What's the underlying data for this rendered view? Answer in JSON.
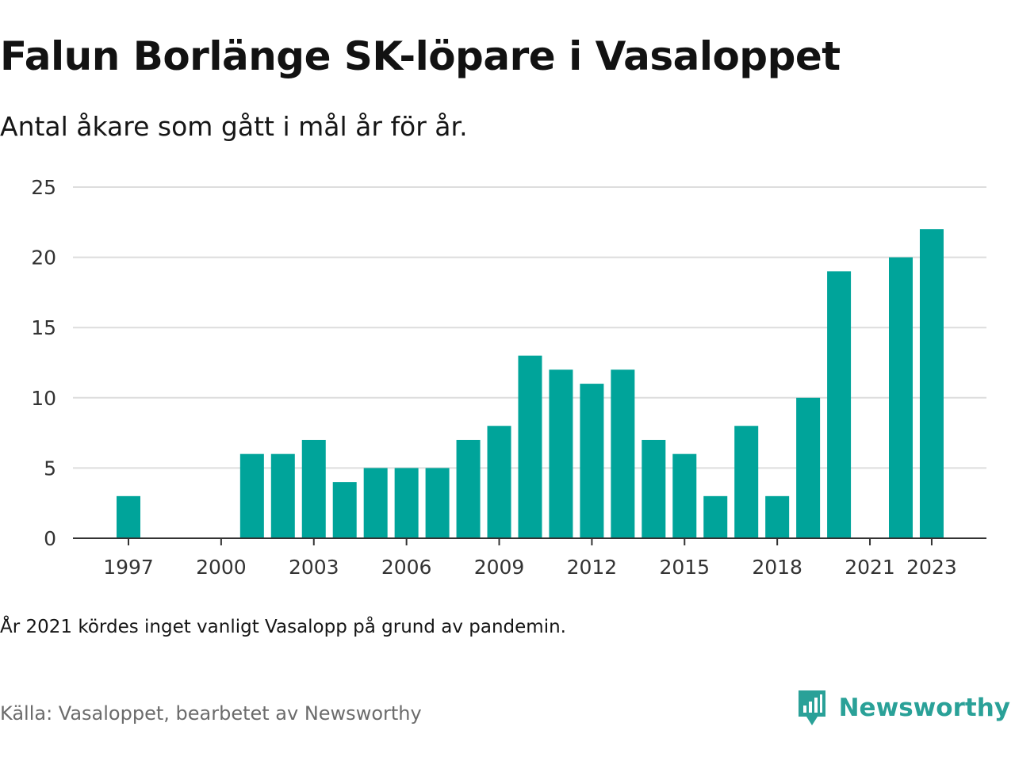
{
  "header": {
    "title": "Falun Borlänge SK-löpare i Vasaloppet",
    "subtitle": "Antal åkare som gått i mål år för år."
  },
  "footer": {
    "note": "År 2021 kördes inget vanligt Vasalopp på grund av pandemin.",
    "source": "Källa: Vasaloppet, bearbetet av Newsworthy",
    "brand": "Newsworthy",
    "brand_icon": "newsworthy-logo-icon"
  },
  "colors": {
    "bar": "#00a49a",
    "grid": "#dddddd",
    "axis": "#333333",
    "brand": "#2aa198"
  },
  "chart_data": {
    "type": "bar",
    "x": [
      1997,
      1998,
      1999,
      2000,
      2001,
      2002,
      2003,
      2004,
      2005,
      2006,
      2007,
      2008,
      2009,
      2010,
      2011,
      2012,
      2013,
      2014,
      2015,
      2016,
      2017,
      2018,
      2019,
      2020,
      2021,
      2022,
      2023
    ],
    "values": [
      3,
      null,
      null,
      null,
      6,
      6,
      7,
      4,
      5,
      5,
      5,
      7,
      8,
      13,
      12,
      11,
      12,
      7,
      6,
      3,
      8,
      3,
      10,
      19,
      null,
      20,
      22
    ],
    "xticks": [
      1997,
      2000,
      2003,
      2006,
      2009,
      2012,
      2015,
      2018,
      2021,
      2023
    ],
    "yticks": [
      0,
      5,
      10,
      15,
      20,
      25
    ],
    "ylim": [
      0,
      25
    ],
    "grid": true,
    "legend": "none"
  }
}
